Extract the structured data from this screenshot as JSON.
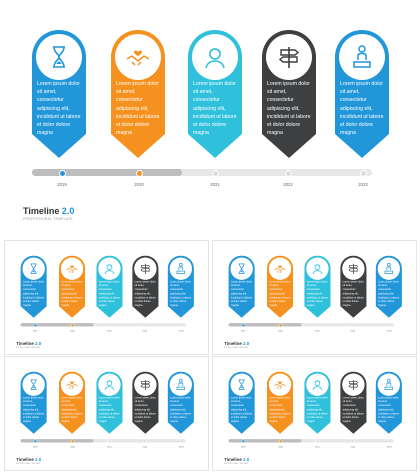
{
  "slide": {
    "title": "Timeline",
    "title_version": "2.0",
    "subtitle": "PROFESSIONAL TEMPLATE",
    "progress": 0.44,
    "milestones": [
      {
        "year": "2019",
        "icon": "hourglass-icon",
        "color": "#2196d9",
        "dot": "#2196d9",
        "text": "Lorem ipsum dolor sit amet, consectetur adipiscing elit, incididunt ut labore et dolor dolore magna"
      },
      {
        "year": "2020",
        "icon": "handshake-heart-icon",
        "color": "#f5911e",
        "dot": "#f5911e",
        "text": "Lorem ipsum dolor sit amet, consectetur adipiscing elit, incididunt ut labore et dolor dolore magna"
      },
      {
        "year": "2021",
        "icon": "person-avatar-icon",
        "color": "#2fc1dc",
        "dot": "#dddddd",
        "text": "Lorem ipsum dolor sit amet, consectetur adipiscing elit, incididunt ut labore et dolor dolore magna"
      },
      {
        "year": "2022",
        "icon": "signpost-icon",
        "color": "#3d3f41",
        "dot": "#dddddd",
        "text": "Lorem ipsum dolor sit amet, consectetur adipiscing elit, incididunt ut labore et dolor dolore magna"
      },
      {
        "year": "2023",
        "icon": "person-podium-icon",
        "color": "#2196d9",
        "dot": "#dddddd",
        "text": "Lorem ipsum dolor sit amet, consectetur adipiscing elit, incididunt ut labore et dolor dolore magna"
      }
    ]
  },
  "thumbnails_count": 4
}
